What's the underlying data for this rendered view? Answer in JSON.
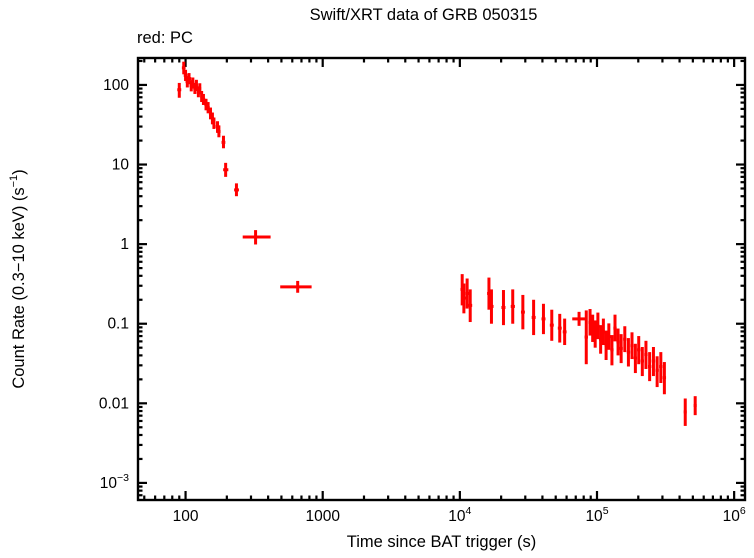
{
  "chart_data": {
    "type": "scatter",
    "title": "Swift/XRT data of GRB 050315",
    "mode_label": "red: PC",
    "xlabel": "Time since BAT trigger (s)",
    "ylabel": "Count Rate (0.3−10 keV) (s⁻¹)",
    "ylabel_parts": {
      "pre": "Count Rate (0.3−10 keV) (s",
      "sup": "−1",
      "post": ")"
    },
    "x_scale": "log",
    "y_scale": "log",
    "grid": false,
    "xlim": [
      45,
      1200000
    ],
    "ylim": [
      0.00061,
      218
    ],
    "x_ticks": [
      {
        "v": 100,
        "l": "100"
      },
      {
        "v": 1000,
        "l": "1000"
      },
      {
        "v": 10000,
        "l": "10^4"
      },
      {
        "v": 100000,
        "l": "10^5"
      },
      {
        "v": 1000000,
        "l": "10^6"
      }
    ],
    "y_ticks": [
      {
        "v": 100,
        "l": "100"
      },
      {
        "v": 10,
        "l": "10"
      },
      {
        "v": 1,
        "l": "1"
      },
      {
        "v": 0.1,
        "l": "0.1"
      },
      {
        "v": 0.01,
        "l": "0.01"
      },
      {
        "v": 0.001,
        "l": "10^−3"
      }
    ],
    "point_columns": [
      "t",
      "t_lo",
      "t_hi",
      "rate",
      "rate_lo",
      "rate_hi"
    ],
    "series": [
      {
        "name": "PC",
        "color": "#ff0000",
        "marker": "cross-errorbar",
        "points": [
          [
            90,
            87,
            93,
            87,
            69,
            106
          ],
          [
            97,
            94,
            100,
            164,
            136,
            196
          ],
          [
            100,
            97,
            103,
            132,
            112,
            155
          ],
          [
            103,
            100,
            106,
            110,
            93,
            129
          ],
          [
            106,
            103,
            110,
            120,
            102,
            141
          ],
          [
            110,
            107,
            113,
            98,
            83,
            115
          ],
          [
            113,
            110,
            116,
            106,
            90,
            124
          ],
          [
            117,
            114,
            120,
            90,
            77,
            106
          ],
          [
            120,
            117,
            123,
            99,
            84,
            116
          ],
          [
            124,
            121,
            127,
            82,
            70,
            96
          ],
          [
            127,
            124,
            130,
            90,
            76,
            105
          ],
          [
            131,
            128,
            134,
            72,
            61,
            84
          ],
          [
            135,
            131,
            139,
            66,
            56,
            77
          ],
          [
            141,
            137,
            145,
            57,
            48,
            67
          ],
          [
            146,
            142,
            150,
            52,
            44,
            61
          ],
          [
            152,
            148,
            156,
            44,
            37,
            52
          ],
          [
            157,
            153,
            161,
            38,
            32,
            45
          ],
          [
            161,
            157,
            165,
            33,
            28,
            39
          ],
          [
            171,
            166,
            176,
            30,
            25,
            35
          ],
          [
            175,
            170,
            180,
            26,
            22,
            31
          ],
          [
            189,
            183,
            195,
            19,
            16,
            23
          ],
          [
            196,
            188,
            205,
            8.6,
            7.0,
            10.5
          ],
          [
            235,
            226,
            245,
            4.8,
            4.0,
            5.8
          ],
          [
            324,
            261,
            417,
            1.23,
            0.99,
            1.5
          ],
          [
            657,
            490,
            830,
            0.29,
            0.245,
            0.345
          ],
          [
            10400,
            10100,
            10800,
            0.27,
            0.17,
            0.42
          ],
          [
            10700,
            10400,
            11100,
            0.21,
            0.135,
            0.32
          ],
          [
            11300,
            11000,
            11700,
            0.24,
            0.155,
            0.37
          ],
          [
            11900,
            11500,
            12300,
            0.17,
            0.105,
            0.27
          ],
          [
            16300,
            15800,
            16900,
            0.24,
            0.15,
            0.38
          ],
          [
            17000,
            16500,
            17600,
            0.165,
            0.1,
            0.27
          ],
          [
            20800,
            20100,
            21500,
            0.16,
            0.096,
            0.265
          ],
          [
            24300,
            23500,
            25200,
            0.165,
            0.1,
            0.27
          ],
          [
            28800,
            27900,
            29800,
            0.14,
            0.085,
            0.23
          ],
          [
            34500,
            33400,
            35700,
            0.12,
            0.072,
            0.2
          ],
          [
            40700,
            39400,
            42100,
            0.115,
            0.074,
            0.178
          ],
          [
            46800,
            45300,
            48400,
            0.096,
            0.061,
            0.15
          ],
          [
            53500,
            51800,
            55300,
            0.088,
            0.058,
            0.133
          ],
          [
            58100,
            56300,
            60000,
            0.079,
            0.054,
            0.116
          ],
          [
            74000,
            66000,
            84000,
            0.115,
            0.094,
            0.141
          ],
          [
            83500,
            81200,
            85900,
            0.068,
            0.031,
            0.147
          ],
          [
            89000,
            86600,
            91500,
            0.104,
            0.071,
            0.153
          ],
          [
            93000,
            90600,
            95500,
            0.088,
            0.059,
            0.13
          ],
          [
            97000,
            94400,
            99700,
            0.074,
            0.05,
            0.11
          ],
          [
            101500,
            98800,
            104300,
            0.094,
            0.064,
            0.138
          ],
          [
            106300,
            103500,
            109200,
            0.064,
            0.042,
            0.096
          ],
          [
            111300,
            108300,
            114400,
            0.079,
            0.054,
            0.116
          ],
          [
            116500,
            113400,
            119700,
            0.054,
            0.035,
            0.082
          ],
          [
            122000,
            118700,
            125400,
            0.069,
            0.047,
            0.101
          ],
          [
            128500,
            125000,
            132100,
            0.047,
            0.03,
            0.072
          ],
          [
            135300,
            131600,
            139100,
            0.088,
            0.06,
            0.13
          ],
          [
            142400,
            138500,
            146400,
            0.059,
            0.04,
            0.087
          ],
          [
            150000,
            145900,
            154200,
            0.049,
            0.032,
            0.074
          ],
          [
            159500,
            155200,
            164000,
            0.064,
            0.044,
            0.093
          ],
          [
            169500,
            164900,
            174300,
            0.044,
            0.029,
            0.066
          ],
          [
            180000,
            175100,
            185100,
            0.053,
            0.036,
            0.078
          ],
          [
            190500,
            185300,
            195900,
            0.037,
            0.024,
            0.056
          ],
          [
            201500,
            196000,
            207200,
            0.047,
            0.031,
            0.07
          ],
          [
            214000,
            208200,
            220100,
            0.034,
            0.022,
            0.051
          ],
          [
            227500,
            221300,
            233900,
            0.041,
            0.027,
            0.061
          ],
          [
            242000,
            235400,
            248800,
            0.029,
            0.019,
            0.044
          ],
          [
            258000,
            251000,
            265300,
            0.034,
            0.022,
            0.051
          ],
          [
            274500,
            267000,
            282200,
            0.026,
            0.016,
            0.039
          ],
          [
            292000,
            284000,
            300300,
            0.029,
            0.018,
            0.044
          ],
          [
            310000,
            301500,
            318700,
            0.021,
            0.013,
            0.033
          ],
          [
            440000,
            429000,
            451000,
            0.0078,
            0.0052,
            0.0115
          ],
          [
            520000,
            507000,
            533000,
            0.0094,
            0.0071,
            0.0123
          ]
        ]
      }
    ],
    "frame_color": "#000000",
    "background_color": "#ffffff"
  }
}
